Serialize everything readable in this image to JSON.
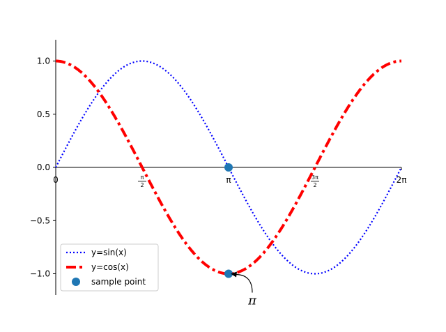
{
  "chart_data": {
    "type": "line",
    "title": "",
    "xlabel": "",
    "ylabel": "",
    "xlim": [
      0,
      6.2832
    ],
    "ylim": [
      -1.2,
      1.2
    ],
    "spines": "centered-at-zero",
    "grid": false,
    "x_ticks": [
      {
        "value": 0,
        "label": "0"
      },
      {
        "value": 1.5708,
        "label_num": "π",
        "label_den": "2",
        "kind": "frac"
      },
      {
        "value": 3.1416,
        "label": "π"
      },
      {
        "value": 4.7124,
        "label_num": "3π",
        "label_den": "2",
        "kind": "frac"
      },
      {
        "value": 6.2832,
        "label": "2π"
      }
    ],
    "y_ticks": [
      {
        "value": 1.0,
        "label": "1.0"
      },
      {
        "value": 0.5,
        "label": "0.5"
      },
      {
        "value": 0.0,
        "label": "0.0"
      },
      {
        "value": -0.5,
        "label": "−0.5"
      },
      {
        "value": -1.0,
        "label": "−1.0"
      }
    ],
    "series": [
      {
        "name": "y=sin(x)",
        "function": "sin",
        "x_range": [
          0,
          6.2832
        ],
        "color": "#0000ff",
        "style": "dotted"
      },
      {
        "name": "y=cos(x)",
        "function": "cos",
        "x_range": [
          0,
          6.2832
        ],
        "color": "#ff0000",
        "style": "dashdot"
      }
    ],
    "points": {
      "name": "sample point",
      "color": "#1f77b4",
      "x": [
        3.1416,
        3.1416
      ],
      "y": [
        0.0,
        -1.0
      ]
    },
    "annotation": {
      "text": "π",
      "target_x": 3.1416,
      "target_y": -1.0
    },
    "legend": {
      "placement": "lower-left",
      "entries": [
        "y=sin(x)",
        "y=cos(x)",
        "sample point"
      ]
    }
  }
}
